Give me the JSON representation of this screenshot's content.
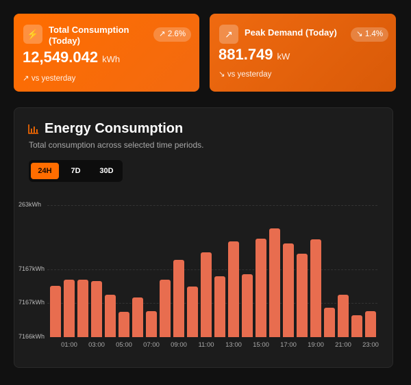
{
  "cards": [
    {
      "icon": "lightning-icon",
      "title": "Total Consumption (Today)",
      "badge_icon": "trending-up-icon",
      "badge": "2.6%",
      "value": "12,549.042",
      "unit": "kWh",
      "trend_icon": "arrow-up-right-icon",
      "comparison": "vs yesterday"
    },
    {
      "icon": "trending-up-icon",
      "title": "Peak Demand (Today)",
      "badge_icon": "trending-down-icon",
      "badge": "1.4%",
      "value": "881.749",
      "unit": "kW",
      "trend_icon": "arrow-down-right-icon",
      "comparison": "vs yesterday"
    }
  ],
  "chart_card": {
    "icon": "bar-chart-icon",
    "title": "Energy Consumption",
    "subtitle": "Total consumption across selected time periods.",
    "ranges": [
      "24H",
      "7D",
      "30D"
    ],
    "selected_range": "24H",
    "accent": "#ff6d00",
    "bar_color": "#e86d4f"
  },
  "chart_data": {
    "type": "bar",
    "y_tick_labels": [
      "263kWh",
      "7167kWh",
      "7167kWh",
      "7166kWh"
    ],
    "x_tick_labels": [
      "01:00",
      "03:00",
      "05:00",
      "07:00",
      "09:00",
      "11:00",
      "13:00",
      "15:00",
      "17:00",
      "19:00",
      "21:00",
      "23:00"
    ],
    "categories": [
      "00:00",
      "01:00",
      "02:00",
      "03:00",
      "04:00",
      "05:00",
      "06:00",
      "07:00",
      "08:00",
      "09:00",
      "10:00",
      "11:00",
      "12:00",
      "13:00",
      "14:00",
      "15:00",
      "16:00",
      "17:00",
      "18:00",
      "19:00",
      "20:00",
      "21:00",
      "22:00",
      "23:00"
    ],
    "values_pct_of_axis": [
      38.9,
      43.5,
      43.5,
      42.5,
      32.1,
      19.2,
      30.1,
      19.7,
      43.5,
      58.5,
      38.3,
      64.2,
      46.1,
      72.5,
      47.7,
      74.6,
      82.4,
      71.0,
      63.2,
      74.1,
      22.3,
      32.1,
      16.6,
      19.7
    ],
    "grid": true
  }
}
